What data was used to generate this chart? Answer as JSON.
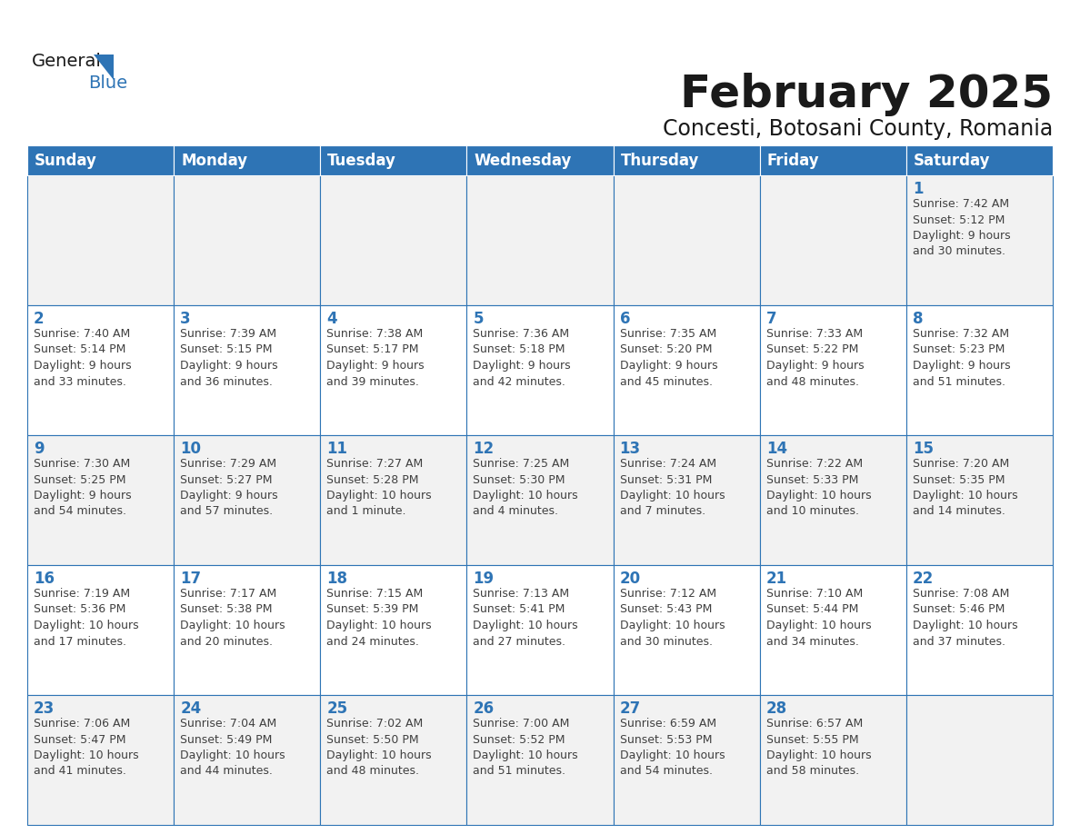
{
  "title": "February 2025",
  "subtitle": "Concesti, Botosani County, Romania",
  "header_bg": "#2E74B5",
  "header_text_color": "#FFFFFF",
  "cell_bg_odd": "#F2F2F2",
  "cell_bg_even": "#FFFFFF",
  "cell_border_color": "#2E74B5",
  "day_number_color": "#2E74B5",
  "cell_text_color": "#404040",
  "days_of_week": [
    "Sunday",
    "Monday",
    "Tuesday",
    "Wednesday",
    "Thursday",
    "Friday",
    "Saturday"
  ],
  "weeks": [
    [
      {
        "day": null,
        "info": ""
      },
      {
        "day": null,
        "info": ""
      },
      {
        "day": null,
        "info": ""
      },
      {
        "day": null,
        "info": ""
      },
      {
        "day": null,
        "info": ""
      },
      {
        "day": null,
        "info": ""
      },
      {
        "day": 1,
        "info": "Sunrise: 7:42 AM\nSunset: 5:12 PM\nDaylight: 9 hours\nand 30 minutes."
      }
    ],
    [
      {
        "day": 2,
        "info": "Sunrise: 7:40 AM\nSunset: 5:14 PM\nDaylight: 9 hours\nand 33 minutes."
      },
      {
        "day": 3,
        "info": "Sunrise: 7:39 AM\nSunset: 5:15 PM\nDaylight: 9 hours\nand 36 minutes."
      },
      {
        "day": 4,
        "info": "Sunrise: 7:38 AM\nSunset: 5:17 PM\nDaylight: 9 hours\nand 39 minutes."
      },
      {
        "day": 5,
        "info": "Sunrise: 7:36 AM\nSunset: 5:18 PM\nDaylight: 9 hours\nand 42 minutes."
      },
      {
        "day": 6,
        "info": "Sunrise: 7:35 AM\nSunset: 5:20 PM\nDaylight: 9 hours\nand 45 minutes."
      },
      {
        "day": 7,
        "info": "Sunrise: 7:33 AM\nSunset: 5:22 PM\nDaylight: 9 hours\nand 48 minutes."
      },
      {
        "day": 8,
        "info": "Sunrise: 7:32 AM\nSunset: 5:23 PM\nDaylight: 9 hours\nand 51 minutes."
      }
    ],
    [
      {
        "day": 9,
        "info": "Sunrise: 7:30 AM\nSunset: 5:25 PM\nDaylight: 9 hours\nand 54 minutes."
      },
      {
        "day": 10,
        "info": "Sunrise: 7:29 AM\nSunset: 5:27 PM\nDaylight: 9 hours\nand 57 minutes."
      },
      {
        "day": 11,
        "info": "Sunrise: 7:27 AM\nSunset: 5:28 PM\nDaylight: 10 hours\nand 1 minute."
      },
      {
        "day": 12,
        "info": "Sunrise: 7:25 AM\nSunset: 5:30 PM\nDaylight: 10 hours\nand 4 minutes."
      },
      {
        "day": 13,
        "info": "Sunrise: 7:24 AM\nSunset: 5:31 PM\nDaylight: 10 hours\nand 7 minutes."
      },
      {
        "day": 14,
        "info": "Sunrise: 7:22 AM\nSunset: 5:33 PM\nDaylight: 10 hours\nand 10 minutes."
      },
      {
        "day": 15,
        "info": "Sunrise: 7:20 AM\nSunset: 5:35 PM\nDaylight: 10 hours\nand 14 minutes."
      }
    ],
    [
      {
        "day": 16,
        "info": "Sunrise: 7:19 AM\nSunset: 5:36 PM\nDaylight: 10 hours\nand 17 minutes."
      },
      {
        "day": 17,
        "info": "Sunrise: 7:17 AM\nSunset: 5:38 PM\nDaylight: 10 hours\nand 20 minutes."
      },
      {
        "day": 18,
        "info": "Sunrise: 7:15 AM\nSunset: 5:39 PM\nDaylight: 10 hours\nand 24 minutes."
      },
      {
        "day": 19,
        "info": "Sunrise: 7:13 AM\nSunset: 5:41 PM\nDaylight: 10 hours\nand 27 minutes."
      },
      {
        "day": 20,
        "info": "Sunrise: 7:12 AM\nSunset: 5:43 PM\nDaylight: 10 hours\nand 30 minutes."
      },
      {
        "day": 21,
        "info": "Sunrise: 7:10 AM\nSunset: 5:44 PM\nDaylight: 10 hours\nand 34 minutes."
      },
      {
        "day": 22,
        "info": "Sunrise: 7:08 AM\nSunset: 5:46 PM\nDaylight: 10 hours\nand 37 minutes."
      }
    ],
    [
      {
        "day": 23,
        "info": "Sunrise: 7:06 AM\nSunset: 5:47 PM\nDaylight: 10 hours\nand 41 minutes."
      },
      {
        "day": 24,
        "info": "Sunrise: 7:04 AM\nSunset: 5:49 PM\nDaylight: 10 hours\nand 44 minutes."
      },
      {
        "day": 25,
        "info": "Sunrise: 7:02 AM\nSunset: 5:50 PM\nDaylight: 10 hours\nand 48 minutes."
      },
      {
        "day": 26,
        "info": "Sunrise: 7:00 AM\nSunset: 5:52 PM\nDaylight: 10 hours\nand 51 minutes."
      },
      {
        "day": 27,
        "info": "Sunrise: 6:59 AM\nSunset: 5:53 PM\nDaylight: 10 hours\nand 54 minutes."
      },
      {
        "day": 28,
        "info": "Sunrise: 6:57 AM\nSunset: 5:55 PM\nDaylight: 10 hours\nand 58 minutes."
      },
      {
        "day": null,
        "info": ""
      }
    ]
  ],
  "logo_general_color": "#1a1a1a",
  "logo_blue_color": "#2E74B5",
  "logo_triangle_color": "#2E74B5",
  "title_fontsize": 36,
  "subtitle_fontsize": 17,
  "header_fontsize": 12,
  "day_number_fontsize": 12,
  "info_fontsize": 9
}
